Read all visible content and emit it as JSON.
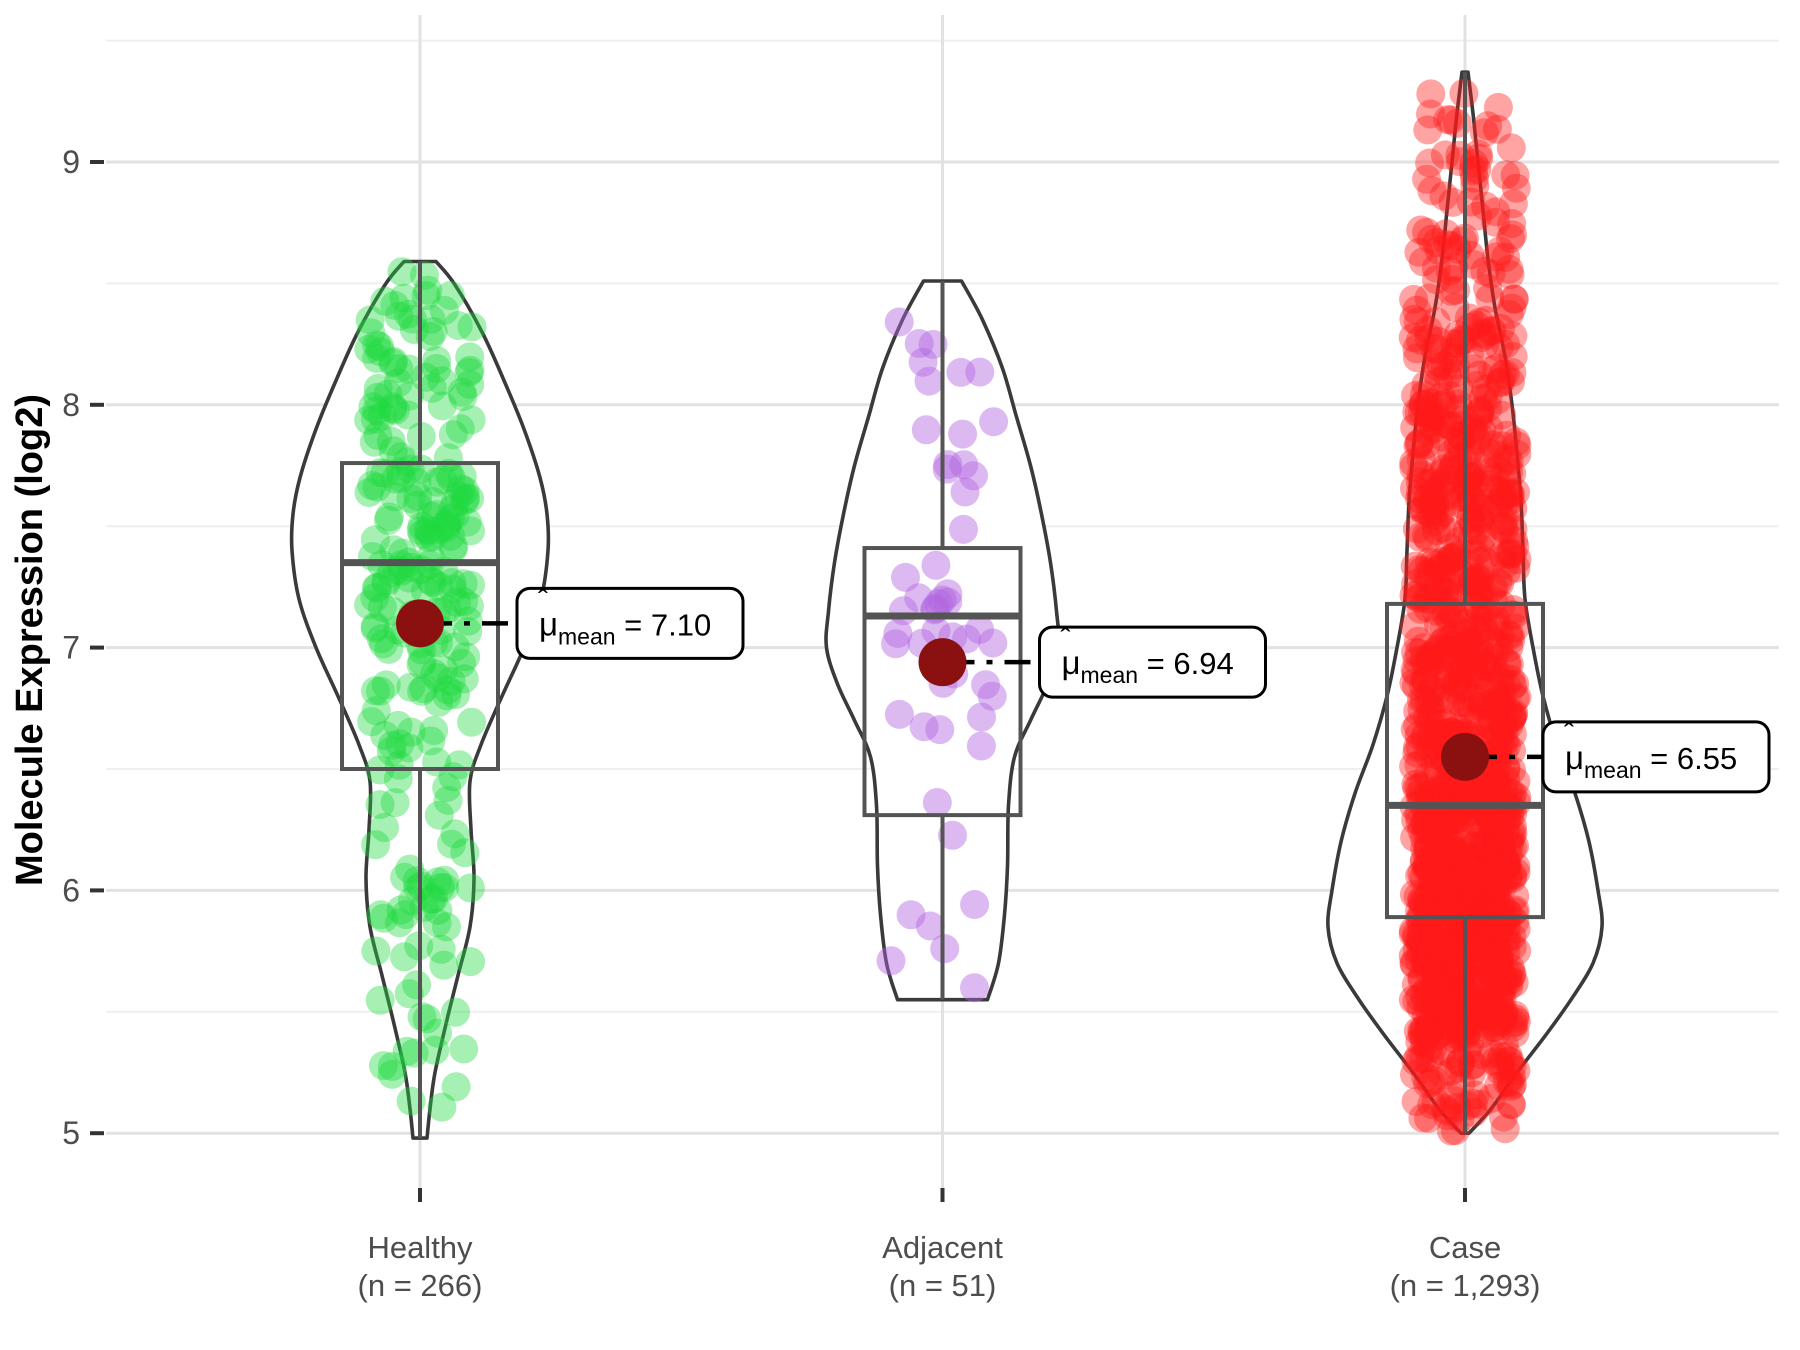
{
  "figure": {
    "y_axis_title": "Molecule Expression (log2)"
  },
  "chart_data": {
    "type": "violin",
    "title": "",
    "xlabel": "",
    "ylabel": "Molecule Expression (log2)",
    "ylim": [
      4.78,
      9.55
    ],
    "y_major_ticks": [
      "9",
      "8",
      "7",
      "6",
      "5"
    ],
    "y_major_values": [
      9,
      8,
      7,
      6,
      5
    ],
    "y_minor_values": [
      9.5,
      8.5,
      7.5,
      6.5,
      5.5
    ],
    "grid": "major+minor horizontal, major vertical at category centers",
    "legend": "none",
    "categories": [
      "Healthy",
      "Adjacent",
      "Case"
    ],
    "colors": {
      "healthy_points": "#1ED93E",
      "adjacent_points": "#B266E0",
      "case_points": "#FF1919",
      "mean_point": "#8B1111",
      "violin_outline": "#3A3A3A",
      "box_outline": "#545454",
      "grid_major": "#E2E2E2",
      "grid_minor": "#EFEFEF",
      "axis_text": "#4D4D4D",
      "tick_mark": "#333333",
      "annotation_border": "#000000",
      "annotation_fill": "#FFFFFF"
    },
    "groups": [
      {
        "label": "Healthy",
        "sublabel": "(n = 266)",
        "n": 266,
        "point_color": "#1ED93E",
        "point_alpha": 0.4,
        "stats": {
          "min": 4.98,
          "q1": 6.5,
          "median": 7.35,
          "q3": 7.76,
          "max": 8.59,
          "mean": 7.1
        },
        "mean_annotation": {
          "symbol": "μ",
          "hat": "ˆ",
          "subscript": "mean",
          "equals": "=",
          "value": "7.10"
        },
        "density_profile": [
          [
            8.59,
            16
          ],
          [
            8.5,
            34
          ],
          [
            8.3,
            62
          ],
          [
            8.1,
            84
          ],
          [
            7.9,
            104
          ],
          [
            7.7,
            120
          ],
          [
            7.55,
            127
          ],
          [
            7.4,
            128
          ],
          [
            7.2,
            121
          ],
          [
            7.0,
            104
          ],
          [
            6.8,
            82
          ],
          [
            6.6,
            61
          ],
          [
            6.45,
            50
          ],
          [
            6.25,
            51
          ],
          [
            6.05,
            54
          ],
          [
            5.85,
            50
          ],
          [
            5.65,
            38
          ],
          [
            5.45,
            26
          ],
          [
            5.25,
            15
          ],
          [
            5.1,
            10
          ],
          [
            4.98,
            7
          ]
        ]
      },
      {
        "label": "Adjacent",
        "sublabel": "(n = 51)",
        "n": 51,
        "point_color": "#B266E0",
        "point_alpha": 0.45,
        "stats": {
          "min": 5.55,
          "q1": 6.31,
          "median": 7.13,
          "q3": 7.41,
          "max": 8.51,
          "mean": 6.94
        },
        "mean_annotation": {
          "symbol": "μ",
          "hat": "ˆ",
          "subscript": "mean",
          "equals": "=",
          "value": "6.94"
        },
        "density_profile": [
          [
            8.51,
            19
          ],
          [
            8.35,
            40
          ],
          [
            8.15,
            60
          ],
          [
            7.95,
            74
          ],
          [
            7.75,
            88
          ],
          [
            7.55,
            99
          ],
          [
            7.35,
            108
          ],
          [
            7.15,
            114
          ],
          [
            7.0,
            116
          ],
          [
            6.85,
            105
          ],
          [
            6.7,
            88
          ],
          [
            6.55,
            72
          ],
          [
            6.35,
            66
          ],
          [
            6.1,
            65
          ],
          [
            5.9,
            62
          ],
          [
            5.7,
            56
          ],
          [
            5.55,
            45
          ]
        ]
      },
      {
        "label": "Case",
        "sublabel": "(n = 1,293)",
        "n": 1293,
        "point_color": "#FF1919",
        "point_alpha": 0.4,
        "stats": {
          "min": 5.0,
          "q1": 5.89,
          "median": 6.35,
          "q3": 7.18,
          "max": 9.37,
          "mean": 6.55
        },
        "mean_annotation": {
          "symbol": "μ",
          "hat": "ˆ",
          "subscript": "mean",
          "equals": "=",
          "value": "6.55"
        },
        "density_profile": [
          [
            9.37,
            3
          ],
          [
            9.2,
            8
          ],
          [
            9.0,
            13
          ],
          [
            8.8,
            18
          ],
          [
            8.6,
            23
          ],
          [
            8.4,
            30
          ],
          [
            8.2,
            40
          ],
          [
            8.0,
            47
          ],
          [
            7.8,
            52
          ],
          [
            7.6,
            56
          ],
          [
            7.4,
            58
          ],
          [
            7.2,
            60
          ],
          [
            7.0,
            68
          ],
          [
            6.8,
            78
          ],
          [
            6.6,
            92
          ],
          [
            6.4,
            110
          ],
          [
            6.2,
            124
          ],
          [
            6.0,
            133
          ],
          [
            5.85,
            137
          ],
          [
            5.7,
            128
          ],
          [
            5.55,
            106
          ],
          [
            5.4,
            80
          ],
          [
            5.25,
            52
          ],
          [
            5.1,
            26
          ],
          [
            5.0,
            4
          ]
        ]
      }
    ]
  }
}
